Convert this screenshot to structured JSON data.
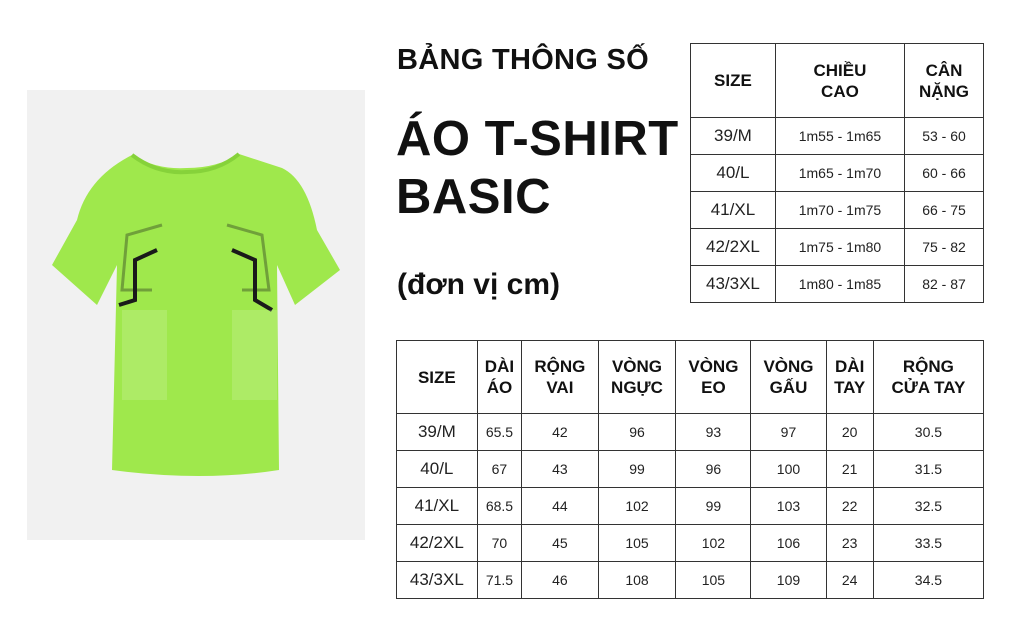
{
  "title": {
    "line1": "BẢNG THÔNG SỐ",
    "line2": "ÁO T-SHIRT",
    "line3": "BASIC",
    "unit": "(đơn vị cm)"
  },
  "colors": {
    "shirt": "#9fe84c",
    "stripe": "#1a1a1a",
    "background": "#f1f1f1"
  },
  "fit_table": {
    "headers": [
      "SIZE",
      "CHIỀU\nCAO",
      "CÂN\nNẶNG"
    ],
    "rows": [
      [
        "39/M",
        "1m55 - 1m65",
        "53 - 60"
      ],
      [
        "40/L",
        "1m65 - 1m70",
        "60 - 66"
      ],
      [
        "41/XL",
        "1m70 - 1m75",
        "66 - 75"
      ],
      [
        "42/2XL",
        "1m75 - 1m80",
        "75 - 82"
      ],
      [
        "43/3XL",
        "1m80 - 1m85",
        "82 - 87"
      ]
    ]
  },
  "measure_table": {
    "headers": [
      "SIZE",
      "DÀI\nÁO",
      "RỘNG\nVAI",
      "VÒNG\nNGỰC",
      "VÒNG\nEO",
      "VÒNG\nGẤU",
      "DÀI\nTAY",
      "RỘNG\nCỬA TAY"
    ],
    "rows": [
      [
        "39/M",
        "65.5",
        "42",
        "96",
        "93",
        "97",
        "20",
        "30.5"
      ],
      [
        "40/L",
        "67",
        "43",
        "99",
        "96",
        "100",
        "21",
        "31.5"
      ],
      [
        "41/XL",
        "68.5",
        "44",
        "102",
        "99",
        "103",
        "22",
        "32.5"
      ],
      [
        "42/2XL",
        "70",
        "45",
        "105",
        "102",
        "106",
        "23",
        "33.5"
      ],
      [
        "43/3XL",
        "71.5",
        "46",
        "108",
        "105",
        "109",
        "24",
        "34.5"
      ]
    ]
  }
}
